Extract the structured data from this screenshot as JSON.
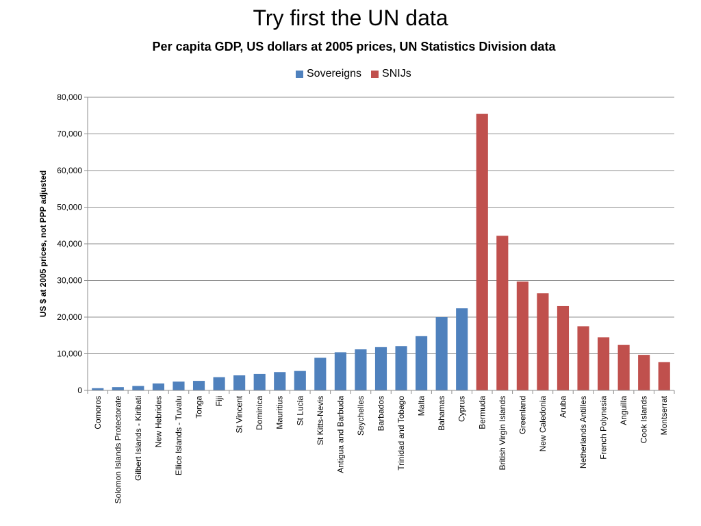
{
  "slide": {
    "title": "Try first the UN data"
  },
  "chart_data": {
    "type": "bar",
    "title": "Per capita GDP, US dollars at 2005 prices, UN Statistics Division data",
    "ylabel": "US $ at 2005 prices, not PPP adjusted",
    "xlabel": "",
    "ylim": [
      0,
      80000
    ],
    "yticks": [
      0,
      10000,
      20000,
      30000,
      40000,
      50000,
      60000,
      70000,
      80000
    ],
    "ytick_labels": [
      "0",
      "10,000",
      "20,000",
      "30,000",
      "40,000",
      "50,000",
      "60,000",
      "70,000",
      "80,000"
    ],
    "grid": true,
    "legend_position": "top",
    "categories": [
      "Comoros",
      "Solomon Islands Protectorate",
      "Gilbert Islands - Kiribati",
      "New Hebrides",
      "Ellice Islands - Tuvalu",
      "Tonga",
      "Fiji",
      "St Vincent",
      "Dominica",
      "Mauritius",
      "St Lucia",
      "St Kitts-Nevis",
      "Antigua and Barbuda",
      "Seychelles",
      "Barbados",
      "Trinidad and Tobago",
      "Malta",
      "Bahamas",
      "Cyprus",
      "Bermuda",
      "British Virgin Islands",
      "Greenland",
      "New Caledonia",
      "Aruba",
      "Netherlands Antilles",
      "French Polynesia",
      "Anguilla",
      "Cook Islands",
      "Montserrat"
    ],
    "values": [
      600,
      900,
      1200,
      1900,
      2400,
      2600,
      3600,
      4100,
      4500,
      5000,
      5300,
      8900,
      10400,
      11200,
      11800,
      12100,
      14800,
      20000,
      22400,
      75500,
      42200,
      29700,
      26500,
      23000,
      17500,
      14500,
      12400,
      9700,
      7700
    ],
    "groups": [
      "Sovereigns",
      "Sovereigns",
      "Sovereigns",
      "Sovereigns",
      "Sovereigns",
      "Sovereigns",
      "Sovereigns",
      "Sovereigns",
      "Sovereigns",
      "Sovereigns",
      "Sovereigns",
      "Sovereigns",
      "Sovereigns",
      "Sovereigns",
      "Sovereigns",
      "Sovereigns",
      "Sovereigns",
      "Sovereigns",
      "Sovereigns",
      "SNIJs",
      "SNIJs",
      "SNIJs",
      "SNIJs",
      "SNIJs",
      "SNIJs",
      "SNIJs",
      "SNIJs",
      "SNIJs",
      "SNIJs"
    ],
    "series": [
      {
        "name": "Sovereigns",
        "color": "#4F81BD"
      },
      {
        "name": "SNIJs",
        "color": "#C0504D"
      }
    ]
  }
}
